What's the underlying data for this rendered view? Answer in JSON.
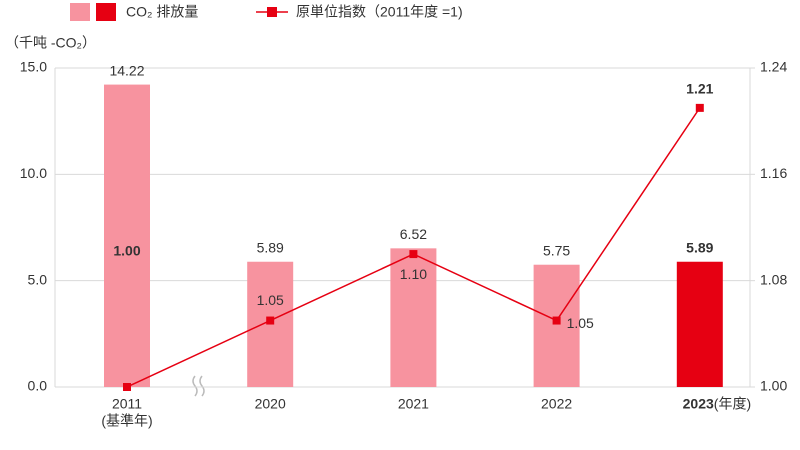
{
  "chart_data": {
    "type": "bar-line",
    "y_axis_label": "（千吨 -CO₂）",
    "categories": [
      "2011",
      "2020",
      "2021",
      "2022",
      "2023"
    ],
    "category_notes": [
      "(基準年)",
      null,
      null,
      null,
      "(年度)"
    ],
    "ylim": [
      0,
      15
    ],
    "yticks": [
      {
        "value": 0,
        "label": "0.0"
      },
      {
        "value": 5,
        "label": "5.0"
      },
      {
        "value": 10,
        "label": "10.0"
      },
      {
        "value": 15,
        "label": "15.0"
      }
    ],
    "y2lim": [
      1.0,
      1.24
    ],
    "y2ticks": [
      {
        "value": 1.0,
        "label": "1.00"
      },
      1.08,
      1.16,
      1.24
    ],
    "grid": true,
    "series": [
      {
        "name": "CO₂ 排放量",
        "type": "bar",
        "colors": [
          "#f7939f",
          "#f7939f",
          "#f7939f",
          "#f7939f",
          "#e60012"
        ],
        "values": [
          14.22,
          5.89,
          6.52,
          5.75,
          5.89
        ]
      },
      {
        "name": "原単位指数（2011年度 =1)",
        "type": "line",
        "axis": "y2",
        "color": "#e60012",
        "values": [
          1.0,
          1.05,
          1.1,
          1.05,
          1.21
        ],
        "value_labels": [
          "1.00",
          "1.05",
          "1.10",
          "1.05",
          "1.21"
        ]
      }
    ]
  }
}
